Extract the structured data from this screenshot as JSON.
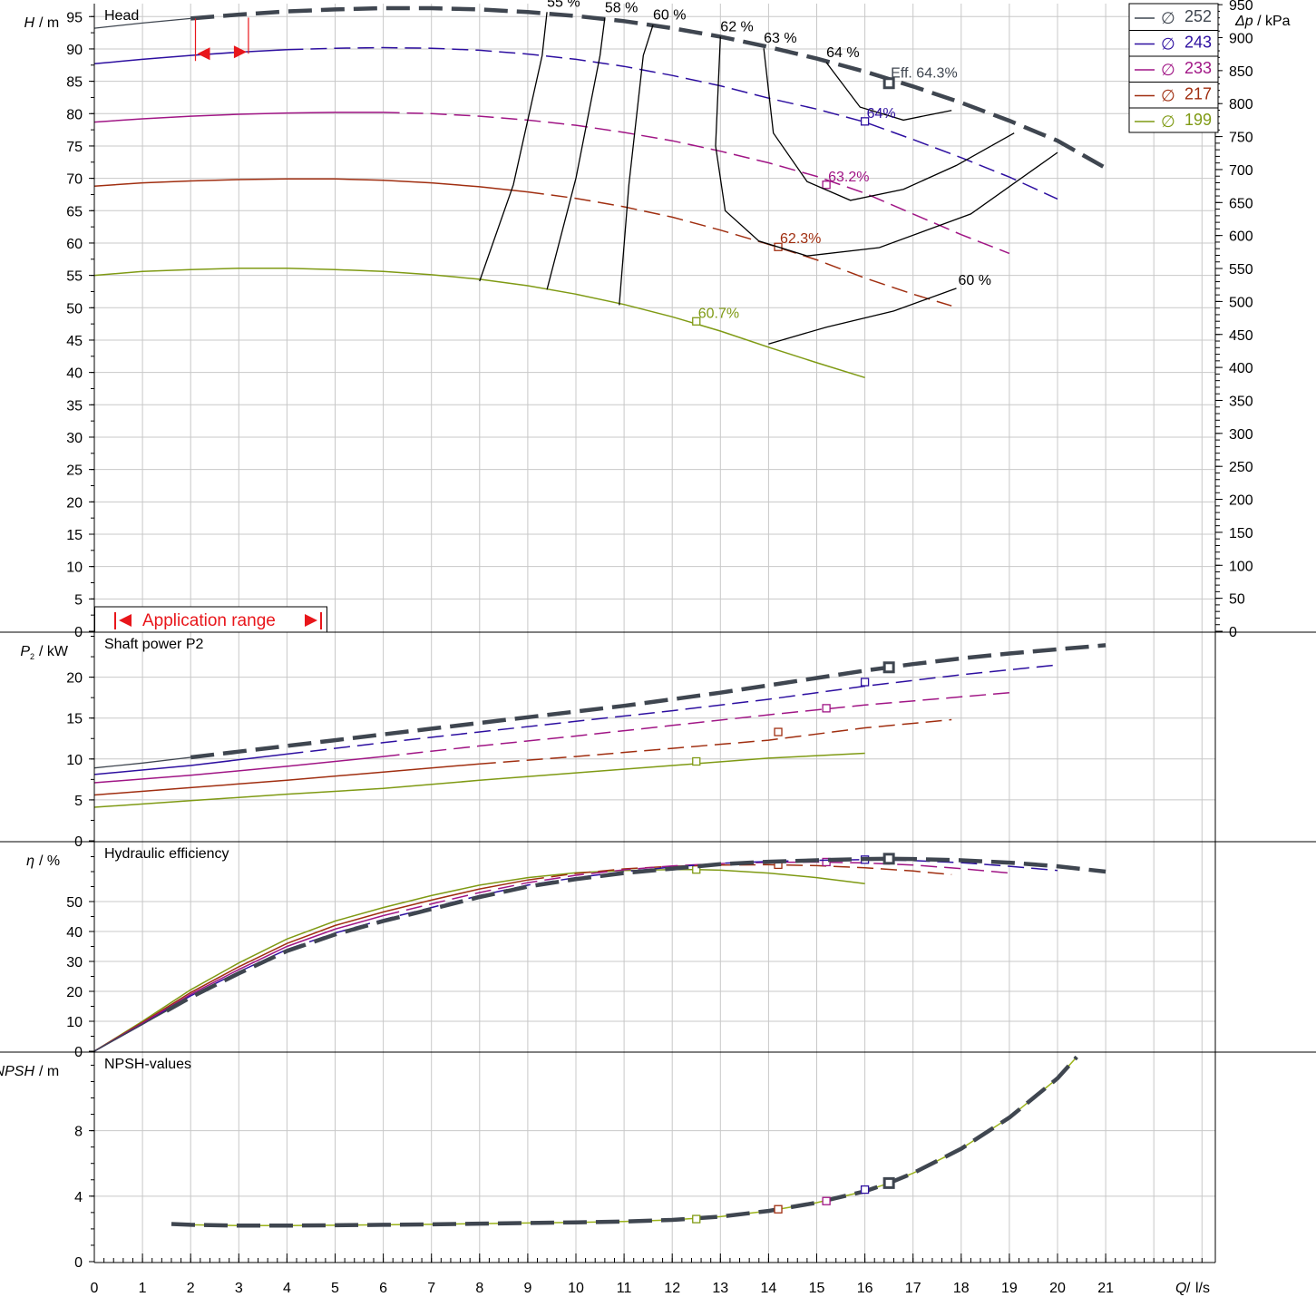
{
  "x_axis": {
    "label_q": "Q",
    "label_unit": "l/s",
    "ticks": [
      "0",
      "1",
      "2",
      "3",
      "4",
      "5",
      "6",
      "7",
      "8",
      "9",
      "10",
      "11",
      "12",
      "13",
      "14",
      "15",
      "16",
      "17",
      "18",
      "19",
      "20",
      "21"
    ]
  },
  "legend": [
    {
      "diameter": "252",
      "color": "#3f4650"
    },
    {
      "diameter": "243",
      "color": "#2d0fa0"
    },
    {
      "diameter": "233",
      "color": "#a01585"
    },
    {
      "diameter": "217",
      "color": "#a02e10"
    },
    {
      "diameter": "199",
      "color": "#7f9a14"
    }
  ],
  "diameter_symbol": "∅",
  "application_range": "Application range",
  "chart_data": [
    {
      "type": "line",
      "title": "Head",
      "ylabel_var": "H",
      "ylabel_unit": "m",
      "y2label_var": "Δp",
      "y2label_unit": "kPa",
      "ylim": [
        0,
        97
      ],
      "y_ticks": [
        0,
        5,
        10,
        15,
        20,
        25,
        30,
        35,
        40,
        45,
        50,
        55,
        60,
        65,
        70,
        75,
        80,
        85,
        90,
        95
      ],
      "y2_ticks": [
        0,
        50,
        100,
        150,
        200,
        250,
        300,
        350,
        400,
        450,
        500,
        550,
        600,
        650,
        700,
        750,
        800,
        850,
        900,
        950
      ],
      "series": [
        {
          "name": "252",
          "x": [
            0,
            1,
            2,
            3,
            4,
            5,
            6,
            7,
            8,
            9,
            10,
            11,
            12,
            13,
            14,
            15,
            16,
            17,
            18,
            19,
            20,
            21
          ],
          "y": [
            93.2,
            94.0,
            94.7,
            95.3,
            95.8,
            96.1,
            96.3,
            96.3,
            96.1,
            95.7,
            95.1,
            94.3,
            93.2,
            91.9,
            90.3,
            88.5,
            86.5,
            84.2,
            81.7,
            78.9,
            75.8,
            71.6
          ],
          "bep": [
            16.5,
            84.7
          ],
          "bep_label": "Eff. 64.3%"
        },
        {
          "name": "243",
          "x": [
            0,
            1,
            2,
            3,
            4,
            5,
            6,
            7,
            8,
            9,
            10,
            11,
            12,
            13,
            14,
            15,
            16,
            17,
            18,
            19,
            20
          ],
          "y": [
            87.7,
            88.4,
            89.0,
            89.5,
            89.9,
            90.1,
            90.2,
            90.1,
            89.8,
            89.2,
            88.4,
            87.3,
            85.9,
            84.3,
            82.4,
            80.7,
            78.7,
            76.0,
            73.2,
            70.2,
            66.8
          ],
          "bep": [
            16.0,
            78.8
          ],
          "bep_label": "64%"
        },
        {
          "name": "233",
          "x": [
            0,
            1,
            2,
            3,
            4,
            5,
            6,
            7,
            8,
            9,
            10,
            11,
            12,
            13,
            14,
            15,
            16,
            17,
            18,
            19
          ],
          "y": [
            78.7,
            79.2,
            79.6,
            79.9,
            80.1,
            80.2,
            80.2,
            80.0,
            79.6,
            79.0,
            78.2,
            77.1,
            75.8,
            74.2,
            72.4,
            70.3,
            67.7,
            64.5,
            61.3,
            58.4
          ],
          "bep": [
            15.2,
            69.0
          ],
          "bep_label": "63.2%"
        },
        {
          "name": "217",
          "x": [
            0,
            1,
            2,
            3,
            4,
            5,
            6,
            7,
            8,
            9,
            10,
            11,
            12,
            13,
            14,
            15,
            16,
            17,
            17.8
          ],
          "y": [
            68.8,
            69.3,
            69.6,
            69.8,
            69.9,
            69.9,
            69.7,
            69.3,
            68.7,
            67.9,
            66.9,
            65.6,
            64.0,
            62.0,
            59.8,
            57.4,
            54.6,
            52.1,
            50.3
          ],
          "bep": [
            14.2,
            59.4
          ],
          "bep_label": "62.3%"
        },
        {
          "name": "199",
          "x": [
            0,
            1,
            2,
            3,
            4,
            5,
            6,
            7,
            8,
            9,
            10,
            11,
            12,
            13,
            14,
            15,
            16
          ],
          "y": [
            55.0,
            55.6,
            55.9,
            56.1,
            56.1,
            55.9,
            55.6,
            55.1,
            54.4,
            53.4,
            52.1,
            50.5,
            48.6,
            46.4,
            43.9,
            41.5,
            39.2
          ],
          "bep": [
            12.5,
            47.9
          ],
          "bep_label": "60.7%"
        }
      ],
      "efficiency_contours": [
        {
          "label": "55 %",
          "x": [
            8.0,
            8.7,
            9.3,
            9.4
          ],
          "y": [
            54.1,
            69.0,
            89.0,
            95.7
          ]
        },
        {
          "label": "58 %",
          "x": [
            9.4,
            10.0,
            10.5,
            10.6
          ],
          "y": [
            52.8,
            70.0,
            89.0,
            94.8
          ]
        },
        {
          "label": "60 %",
          "x": [
            10.9,
            11.1,
            11.4,
            11.6
          ],
          "y": [
            50.4,
            69.0,
            89.0,
            93.7
          ]
        },
        {
          "label": "62 %",
          "x": [
            13.0,
            12.9,
            13.1,
            13.8,
            14.8,
            16.3,
            18.2,
            20.0
          ],
          "y": [
            91.9,
            75.0,
            65.0,
            60.3,
            58.0,
            59.3,
            64.5,
            74.0
          ]
        },
        {
          "label": "63 %",
          "x": [
            13.9,
            14.1,
            14.8,
            15.7,
            16.8,
            17.9,
            19.1
          ],
          "y": [
            90.1,
            77.0,
            69.5,
            66.6,
            68.3,
            72.0,
            77.0
          ]
        },
        {
          "label": "64 %",
          "x": [
            15.2,
            15.9,
            16.8,
            17.8
          ],
          "y": [
            87.9,
            81.0,
            79.0,
            80.5
          ]
        },
        {
          "label": "60 %",
          "x": [
            14.0,
            15.2,
            16.6,
            17.9
          ],
          "y": [
            44.4,
            47.0,
            49.5,
            53.0
          ]
        }
      ],
      "operating_arrow_range": [
        2.1,
        3.2
      ]
    },
    {
      "type": "line",
      "title": "Shaft power P2",
      "ylabel_var": "P",
      "ylabel_sub": "2",
      "ylabel_unit": "kW",
      "ylim": [
        0,
        25.5
      ],
      "y_ticks": [
        0,
        5,
        10,
        15,
        20
      ],
      "series": [
        {
          "name": "252",
          "x": [
            0,
            1,
            2,
            3,
            4,
            5,
            6,
            7,
            8,
            9,
            10,
            11,
            12,
            13,
            14,
            15,
            16,
            17,
            18,
            19,
            20,
            21
          ],
          "y": [
            8.9,
            9.5,
            10.2,
            10.9,
            11.6,
            12.3,
            13.0,
            13.7,
            14.4,
            15.1,
            15.8,
            16.5,
            17.3,
            18.1,
            19.0,
            19.9,
            20.8,
            21.6,
            22.3,
            22.9,
            23.4,
            23.9
          ],
          "bep": [
            16.5,
            21.2
          ]
        },
        {
          "name": "243",
          "x": [
            0,
            2,
            4,
            6,
            8,
            10,
            12,
            14,
            16,
            18,
            20
          ],
          "y": [
            8.1,
            9.2,
            10.6,
            12.0,
            13.3,
            14.6,
            15.9,
            17.3,
            18.9,
            20.3,
            21.5
          ],
          "bep": [
            16.0,
            19.4
          ]
        },
        {
          "name": "233",
          "x": [
            0,
            2,
            4,
            6,
            8,
            10,
            12,
            14,
            16,
            18,
            19
          ],
          "y": [
            7.1,
            8.0,
            9.1,
            10.3,
            11.6,
            12.8,
            14.1,
            15.4,
            16.6,
            17.6,
            18.1
          ],
          "bep": [
            15.2,
            16.2
          ]
        },
        {
          "name": "217",
          "x": [
            0,
            2,
            4,
            6,
            8,
            10,
            12,
            14,
            16,
            17.8
          ],
          "y": [
            5.6,
            6.5,
            7.4,
            8.4,
            9.4,
            10.3,
            11.3,
            12.3,
            13.8,
            14.8
          ],
          "bep": [
            14.2,
            13.3
          ]
        },
        {
          "name": "199",
          "x": [
            0,
            2,
            4,
            6,
            8,
            10,
            12,
            14,
            16
          ],
          "y": [
            4.1,
            4.9,
            5.7,
            6.4,
            7.4,
            8.3,
            9.2,
            10.1,
            10.7
          ],
          "bep": [
            12.5,
            9.7
          ]
        }
      ]
    },
    {
      "type": "line",
      "title": "Hydraulic efficiency",
      "ylabel_var": "η",
      "ylabel_unit": "%",
      "ylim": [
        0,
        70
      ],
      "y_ticks": [
        0,
        10,
        20,
        30,
        40,
        50
      ],
      "series": [
        {
          "name": "252",
          "x": [
            0,
            0.5,
            1,
            1.5,
            2,
            3,
            4,
            5,
            6,
            7,
            8,
            9,
            10,
            11,
            12,
            13,
            14,
            15,
            16,
            16.5,
            17,
            18,
            19,
            20,
            21
          ],
          "y": [
            0,
            4.5,
            9.0,
            13.5,
            18.0,
            26.0,
            33.5,
            39.0,
            43.5,
            47.5,
            51.5,
            55.0,
            57.5,
            59.5,
            61.0,
            62.5,
            63.3,
            63.8,
            64.2,
            64.3,
            64.2,
            63.8,
            63.0,
            61.8,
            60.0
          ],
          "bep": [
            16.5,
            64.3
          ]
        },
        {
          "name": "243",
          "x": [
            0,
            1,
            2,
            3,
            4,
            5,
            6,
            7,
            8,
            9,
            10,
            11,
            12,
            13,
            14,
            15,
            16,
            17,
            18,
            19,
            20
          ],
          "y": [
            0,
            9.0,
            18.5,
            26.5,
            34.0,
            39.5,
            44.0,
            48.0,
            52.0,
            55.5,
            58.0,
            60.0,
            61.5,
            62.8,
            63.4,
            63.8,
            64.0,
            63.7,
            63.0,
            61.8,
            60.4
          ],
          "bep": [
            16.0,
            64.0
          ]
        },
        {
          "name": "233",
          "x": [
            0,
            1,
            2,
            3,
            4,
            5,
            6,
            7,
            8,
            9,
            10,
            11,
            12,
            13,
            14,
            15,
            16,
            17,
            18,
            19
          ],
          "y": [
            0,
            9.3,
            19.0,
            27.3,
            35.0,
            40.8,
            45.3,
            49.2,
            53.0,
            56.3,
            58.8,
            60.6,
            61.9,
            62.7,
            63.1,
            63.2,
            62.9,
            62.2,
            61.0,
            59.5
          ],
          "bep": [
            15.2,
            63.2
          ]
        },
        {
          "name": "217",
          "x": [
            0,
            1,
            2,
            3,
            4,
            5,
            6,
            7,
            8,
            9,
            10,
            11,
            12,
            13,
            14,
            15,
            16,
            17,
            17.8
          ],
          "y": [
            0,
            9.6,
            19.6,
            28.2,
            36.0,
            42.0,
            46.5,
            50.5,
            54.2,
            57.2,
            59.4,
            60.9,
            61.8,
            62.2,
            62.3,
            62.0,
            61.3,
            60.2,
            59.0
          ],
          "bep": [
            14.2,
            62.3
          ]
        },
        {
          "name": "199",
          "x": [
            0,
            1,
            2,
            3,
            4,
            5,
            6,
            7,
            8,
            9,
            10,
            11,
            12,
            12.5,
            13,
            14,
            15,
            16
          ],
          "y": [
            0,
            10.0,
            20.5,
            29.5,
            37.5,
            43.5,
            48.0,
            52.0,
            55.5,
            58.0,
            59.6,
            60.4,
            60.7,
            60.7,
            60.5,
            59.5,
            58.0,
            56.0
          ],
          "bep": [
            12.5,
            60.7
          ]
        }
      ]
    },
    {
      "type": "line",
      "title": "NPSH-values",
      "ylabel_var": "NPSH",
      "ylabel_unit": "m",
      "ylim": [
        0,
        12.8
      ],
      "y_ticks": [
        0,
        4,
        8
      ],
      "series": [
        {
          "name": "252",
          "x": [
            1.6,
            2,
            3,
            4,
            5,
            6,
            7,
            8,
            9,
            10,
            11,
            12,
            13,
            14,
            15,
            16,
            16.5,
            17,
            18,
            19,
            20,
            20.4
          ],
          "y": [
            2.3,
            2.25,
            2.2,
            2.2,
            2.22,
            2.25,
            2.28,
            2.32,
            2.36,
            2.4,
            2.45,
            2.55,
            2.75,
            3.1,
            3.6,
            4.3,
            4.8,
            5.4,
            6.9,
            8.8,
            11.2,
            12.5
          ],
          "bep": [
            16.5,
            4.8
          ]
        },
        {
          "name": "243",
          "bep": [
            16.0,
            4.4
          ]
        },
        {
          "name": "233",
          "bep": [
            15.2,
            3.7
          ]
        },
        {
          "name": "217",
          "bep": [
            14.2,
            3.2
          ]
        },
        {
          "name": "199",
          "bep": [
            12.5,
            2.6
          ]
        }
      ]
    }
  ]
}
